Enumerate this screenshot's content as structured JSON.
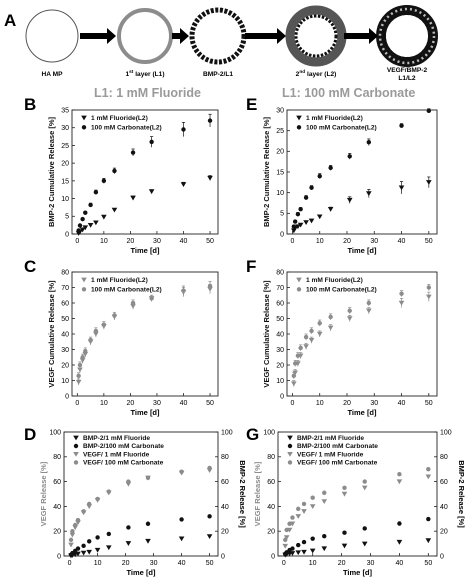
{
  "panel_letters": [
    "A",
    "B",
    "C",
    "D",
    "E",
    "F",
    "G"
  ],
  "schematic": {
    "stages": [
      "HA MP",
      "1st layer (L1)",
      "BMP-2/L1",
      "2nd layer (L2)",
      "VEGF/BMP-2 L1/L2"
    ],
    "stage_parts": [
      {
        "pre": "HA MP",
        "sup": "",
        "post": ""
      },
      {
        "pre": "1",
        "sup": "st",
        "post": " layer (L1)"
      },
      {
        "pre": "BMP-2/L1",
        "sup": "",
        "post": ""
      },
      {
        "pre": "2",
        "sup": "nd",
        "post": " layer (L2)"
      },
      {
        "pre": "VEGF/BMP-2",
        "sup": "",
        "post": "",
        "line2": "L1/L2"
      }
    ],
    "arrow_color": "#000000"
  },
  "column_titles": {
    "left": "L1: 1 mM Fluoride",
    "right": "L1: 100 mM Carbonate"
  },
  "colors": {
    "black_series": "#111111",
    "grey_series": "#8c8c8c",
    "title_grey": "#9a9a9a"
  },
  "chart_data": [
    {
      "panel": "B",
      "type": "scatter",
      "title": "L1: 1 mM Fluoride",
      "xlabel": "Time [d]",
      "ylabel": "BMP-2 Cumulative Release [%]",
      "xlim": [
        -2,
        53
      ],
      "ylim": [
        0,
        35
      ],
      "xticks": [
        0,
        10,
        20,
        30,
        40,
        50
      ],
      "yticks": [
        0,
        5,
        10,
        15,
        20,
        25,
        30,
        35
      ],
      "legend_position": "top-left",
      "series": [
        {
          "name": "1 mM Fluoride(L2)",
          "marker": "triangle-down",
          "color": "#111111",
          "x": [
            0.5,
            1,
            2,
            3,
            5,
            7,
            10,
            14,
            21,
            28,
            40,
            50
          ],
          "y": [
            0.2,
            0.6,
            1.2,
            1.8,
            2.5,
            3.2,
            4.8,
            6.8,
            10.2,
            12.0,
            14.0,
            15.8
          ],
          "err": [
            0.2,
            0.2,
            0.3,
            0.3,
            0.3,
            0.3,
            0.4,
            0.4,
            0.5,
            0.5,
            0.6,
            0.7
          ]
        },
        {
          "name": "100 mM Carbonate(L2)",
          "marker": "circle",
          "color": "#111111",
          "x": [
            0.5,
            1,
            2,
            3,
            5,
            7,
            10,
            14,
            21,
            28,
            40,
            50
          ],
          "y": [
            1.0,
            2.4,
            4.2,
            6.0,
            8.2,
            11.8,
            15.0,
            17.8,
            23.0,
            26.0,
            29.5,
            32.0
          ],
          "err": [
            0.2,
            0.3,
            0.3,
            0.4,
            0.5,
            0.6,
            0.7,
            0.8,
            1.0,
            1.5,
            2.0,
            1.8
          ]
        }
      ]
    },
    {
      "panel": "E",
      "type": "scatter",
      "title": "L1: 100 mM Carbonate",
      "xlabel": "Time [d]",
      "ylabel": "BMP-2 Cumulative Release [%]",
      "xlim": [
        -2,
        53
      ],
      "ylim": [
        0,
        30
      ],
      "xticks": [
        0,
        10,
        20,
        30,
        40,
        50
      ],
      "yticks": [
        0,
        5,
        10,
        15,
        20,
        25,
        30
      ],
      "legend_position": "top-left",
      "series": [
        {
          "name": "1 mM Fluoride(L2)",
          "marker": "triangle-down",
          "color": "#111111",
          "x": [
            0.5,
            1,
            2,
            3,
            5,
            7,
            10,
            14,
            21,
            28,
            40,
            50
          ],
          "y": [
            0.8,
            1.4,
            1.8,
            2.2,
            2.8,
            3.2,
            4.2,
            6.0,
            8.2,
            9.8,
            11.2,
            12.5
          ],
          "err": [
            0.3,
            0.3,
            0.3,
            0.3,
            0.4,
            0.4,
            0.4,
            0.5,
            0.8,
            1.0,
            1.5,
            1.3
          ]
        },
        {
          "name": "100 mM Carbonate(L2)",
          "marker": "circle",
          "color": "#111111",
          "x": [
            0.5,
            1,
            2,
            3,
            5,
            7,
            10,
            14,
            21,
            28,
            40,
            50
          ],
          "y": [
            1.8,
            3.0,
            4.8,
            6.0,
            8.8,
            11.2,
            14.0,
            16.0,
            18.8,
            22.2,
            26.2,
            29.8
          ],
          "err": [
            0.3,
            0.3,
            0.4,
            0.4,
            0.5,
            0.5,
            0.6,
            0.6,
            0.7,
            0.8,
            0.5,
            0.5
          ]
        }
      ]
    },
    {
      "panel": "C",
      "type": "scatter",
      "xlabel": "Time [d]",
      "ylabel": "VEGF Cumulative Release [%]",
      "xlim": [
        -2,
        53
      ],
      "ylim": [
        0,
        80
      ],
      "xticks": [
        0,
        10,
        20,
        30,
        40,
        50
      ],
      "yticks": [
        0,
        10,
        20,
        30,
        40,
        50,
        60,
        70,
        80
      ],
      "legend_position": "top-left",
      "series": [
        {
          "name": "1 mM Fluoride(L2)",
          "marker": "triangle-down",
          "color": "#8c8c8c",
          "x": [
            0.5,
            1,
            2,
            3,
            5,
            7,
            10,
            14,
            21,
            28,
            40,
            50
          ],
          "y": [
            9,
            17,
            23,
            27,
            35,
            40,
            45,
            51,
            58,
            63,
            67,
            69
          ],
          "err": [
            2,
            2,
            2,
            2,
            2,
            2,
            2,
            2,
            2,
            2,
            3,
            3
          ]
        },
        {
          "name": "100 mM Carbonate(L2)",
          "marker": "circle",
          "color": "#8c8c8c",
          "x": [
            0.5,
            1,
            2,
            3,
            5,
            7,
            10,
            14,
            21,
            28,
            40,
            50
          ],
          "y": [
            13,
            20,
            25,
            29,
            36,
            42,
            46,
            52,
            60,
            63,
            68,
            71
          ],
          "err": [
            2,
            2,
            2,
            2,
            2,
            2,
            2,
            2,
            2,
            2,
            3,
            3
          ]
        }
      ]
    },
    {
      "panel": "F",
      "type": "scatter",
      "xlabel": "Time [d]",
      "ylabel": "VEGF Cumulative Release [%]",
      "xlim": [
        -2,
        53
      ],
      "ylim": [
        0,
        80
      ],
      "xticks": [
        0,
        10,
        20,
        30,
        40,
        50
      ],
      "yticks": [
        0,
        10,
        20,
        30,
        40,
        50,
        60,
        70,
        80
      ],
      "legend_position": "top-left",
      "series": [
        {
          "name": "1 mM Fluoride(L2)",
          "marker": "triangle-down",
          "color": "#8c8c8c",
          "x": [
            0.5,
            1,
            2,
            3,
            5,
            7,
            10,
            14,
            21,
            28,
            40,
            50
          ],
          "y": [
            8,
            15,
            21,
            26,
            32,
            36,
            40,
            44,
            50,
            55,
            60,
            64
          ],
          "err": [
            2,
            2,
            2,
            2,
            2,
            2,
            2,
            2,
            2,
            2,
            3,
            3
          ]
        },
        {
          "name": "100 mM Carbonate(L2)",
          "marker": "circle",
          "color": "#8c8c8c",
          "x": [
            0.5,
            1,
            2,
            3,
            5,
            7,
            10,
            14,
            21,
            28,
            40,
            50
          ],
          "y": [
            13,
            21,
            26,
            31,
            38,
            42,
            47,
            51,
            55,
            60,
            66,
            70
          ],
          "err": [
            2,
            2,
            2,
            2,
            2,
            2,
            2,
            2,
            2,
            2,
            2,
            2
          ]
        }
      ]
    },
    {
      "panel": "D",
      "type": "scatter",
      "xlabel": "Time [d]",
      "ylabel": "VEGF Release [%]",
      "ylabel_right": "BMP-2 Release [%]",
      "xlim": [
        -2,
        53
      ],
      "ylim": [
        0,
        100
      ],
      "ylim_right": [
        0,
        100
      ],
      "xticks": [
        0,
        10,
        20,
        30,
        40,
        50
      ],
      "yticks": [
        0,
        20,
        40,
        60,
        80,
        100
      ],
      "legend_position": "top-left",
      "series": [
        {
          "name": "BMP-2/1 mM Fluoride",
          "marker": "triangle-down",
          "color": "#111111",
          "x": [
            0.5,
            1,
            2,
            3,
            5,
            7,
            10,
            14,
            21,
            28,
            40,
            50
          ],
          "y": [
            0.2,
            0.6,
            1.2,
            1.8,
            2.5,
            3.2,
            4.8,
            6.8,
            10.2,
            12.0,
            14.0,
            15.8
          ]
        },
        {
          "name": "BMP-2/100 mM Carbonate",
          "marker": "circle",
          "color": "#111111",
          "x": [
            0.5,
            1,
            2,
            3,
            5,
            7,
            10,
            14,
            21,
            28,
            40,
            50
          ],
          "y": [
            1.0,
            2.4,
            4.2,
            6.0,
            8.2,
            11.8,
            15.0,
            17.8,
            23.0,
            26.0,
            29.5,
            32.0
          ]
        },
        {
          "name": "VEGF/ 1 mM Fluoride",
          "marker": "triangle-down",
          "color": "#8c8c8c",
          "x": [
            0.5,
            1,
            2,
            3,
            5,
            7,
            10,
            14,
            21,
            28,
            40,
            50
          ],
          "y": [
            9,
            17,
            23,
            27,
            35,
            40,
            45,
            51,
            58,
            63,
            67,
            69
          ]
        },
        {
          "name": "VEGF/ 100 mM Carbonate",
          "marker": "circle",
          "color": "#8c8c8c",
          "x": [
            0.5,
            1,
            2,
            3,
            5,
            7,
            10,
            14,
            21,
            28,
            40,
            50
          ],
          "y": [
            13,
            20,
            25,
            29,
            36,
            42,
            46,
            52,
            60,
            63,
            68,
            71
          ]
        }
      ]
    },
    {
      "panel": "G",
      "type": "scatter",
      "xlabel": "Time [d]",
      "ylabel": "VEGF Release [%]",
      "ylabel_right": "BMP-2 Release [%]",
      "xlim": [
        -2,
        53
      ],
      "ylim": [
        0,
        100
      ],
      "ylim_right": [
        0,
        100
      ],
      "xticks": [
        0,
        10,
        20,
        30,
        40,
        50
      ],
      "yticks": [
        0,
        20,
        40,
        60,
        80,
        100
      ],
      "legend_position": "top-left",
      "series": [
        {
          "name": "BMP-2/1 mM Fluoride",
          "marker": "triangle-down",
          "color": "#111111",
          "x": [
            0.5,
            1,
            2,
            3,
            5,
            7,
            10,
            14,
            21,
            28,
            40,
            50
          ],
          "y": [
            0.8,
            1.4,
            1.8,
            2.2,
            2.8,
            3.2,
            4.2,
            6.0,
            8.2,
            9.8,
            11.2,
            12.5
          ]
        },
        {
          "name": "BMP-2/100 mM Carbonate",
          "marker": "circle",
          "color": "#111111",
          "x": [
            0.5,
            1,
            2,
            3,
            5,
            7,
            10,
            14,
            21,
            28,
            40,
            50
          ],
          "y": [
            1.8,
            3.0,
            4.8,
            6.0,
            8.8,
            11.2,
            14.0,
            16.0,
            18.8,
            22.2,
            26.2,
            29.8
          ]
        },
        {
          "name": "VEGF/ 1 mM Fluoride",
          "marker": "triangle-down",
          "color": "#8c8c8c",
          "x": [
            0.5,
            1,
            2,
            3,
            5,
            7,
            10,
            14,
            21,
            28,
            40,
            50
          ],
          "y": [
            8,
            15,
            21,
            26,
            32,
            36,
            40,
            44,
            50,
            55,
            60,
            64
          ]
        },
        {
          "name": "VEGF/ 100 mM Carbonate",
          "marker": "circle",
          "color": "#8c8c8c",
          "x": [
            0.5,
            1,
            2,
            3,
            5,
            7,
            10,
            14,
            21,
            28,
            40,
            50
          ],
          "y": [
            13,
            21,
            26,
            31,
            38,
            42,
            47,
            51,
            55,
            60,
            66,
            70
          ]
        }
      ]
    }
  ]
}
